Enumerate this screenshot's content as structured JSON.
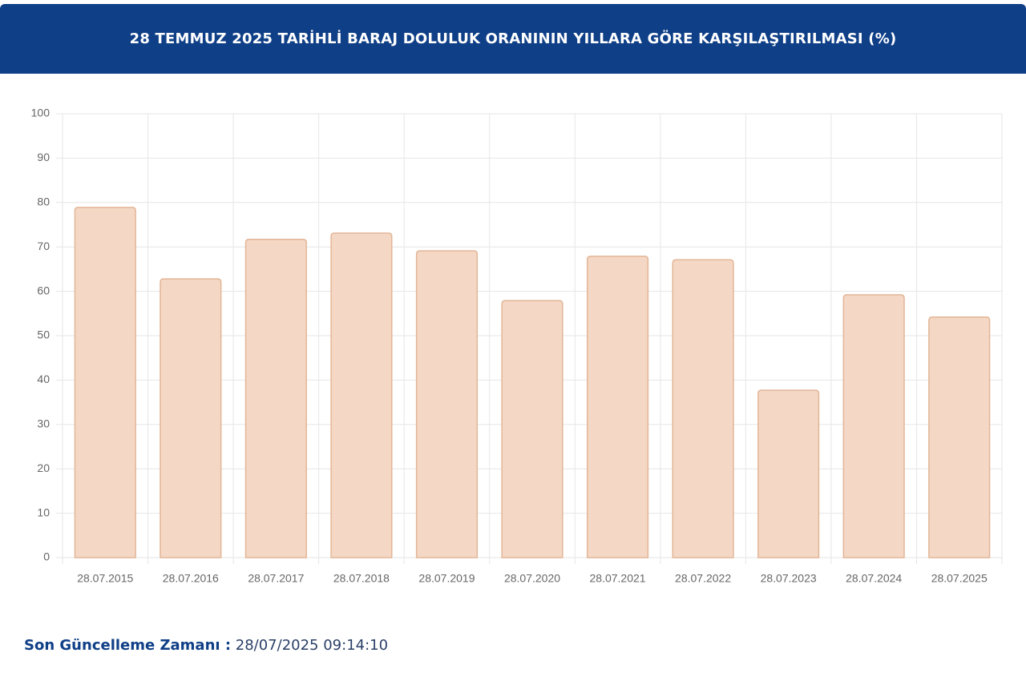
{
  "chart_data": {
    "type": "bar",
    "title": "28 TEMMUZ 2025 TARİHLİ BARAJ DOLULUK ORANININ YILLARA GÖRE KARŞILAŞTIRILMASI (%)",
    "categories": [
      "28.07.2015",
      "28.07.2016",
      "28.07.2017",
      "28.07.2018",
      "28.07.2019",
      "28.07.2020",
      "28.07.2021",
      "28.07.2022",
      "28.07.2023",
      "28.07.2024",
      "28.07.2025"
    ],
    "values": [
      78.9,
      62.8,
      71.7,
      73.1,
      69.1,
      57.9,
      67.9,
      67.1,
      37.7,
      59.2,
      54.2
    ],
    "color": "#f4d8c5",
    "border_color": "#e2b596",
    "ylim": [
      0,
      100
    ],
    "yticks": [
      0,
      10,
      20,
      30,
      40,
      50,
      60,
      70,
      80,
      90,
      100
    ],
    "grid": true
  },
  "footer": {
    "label": "Son Güncelleme Zamanı :",
    "value": "28/07/2025 09:14:10"
  }
}
